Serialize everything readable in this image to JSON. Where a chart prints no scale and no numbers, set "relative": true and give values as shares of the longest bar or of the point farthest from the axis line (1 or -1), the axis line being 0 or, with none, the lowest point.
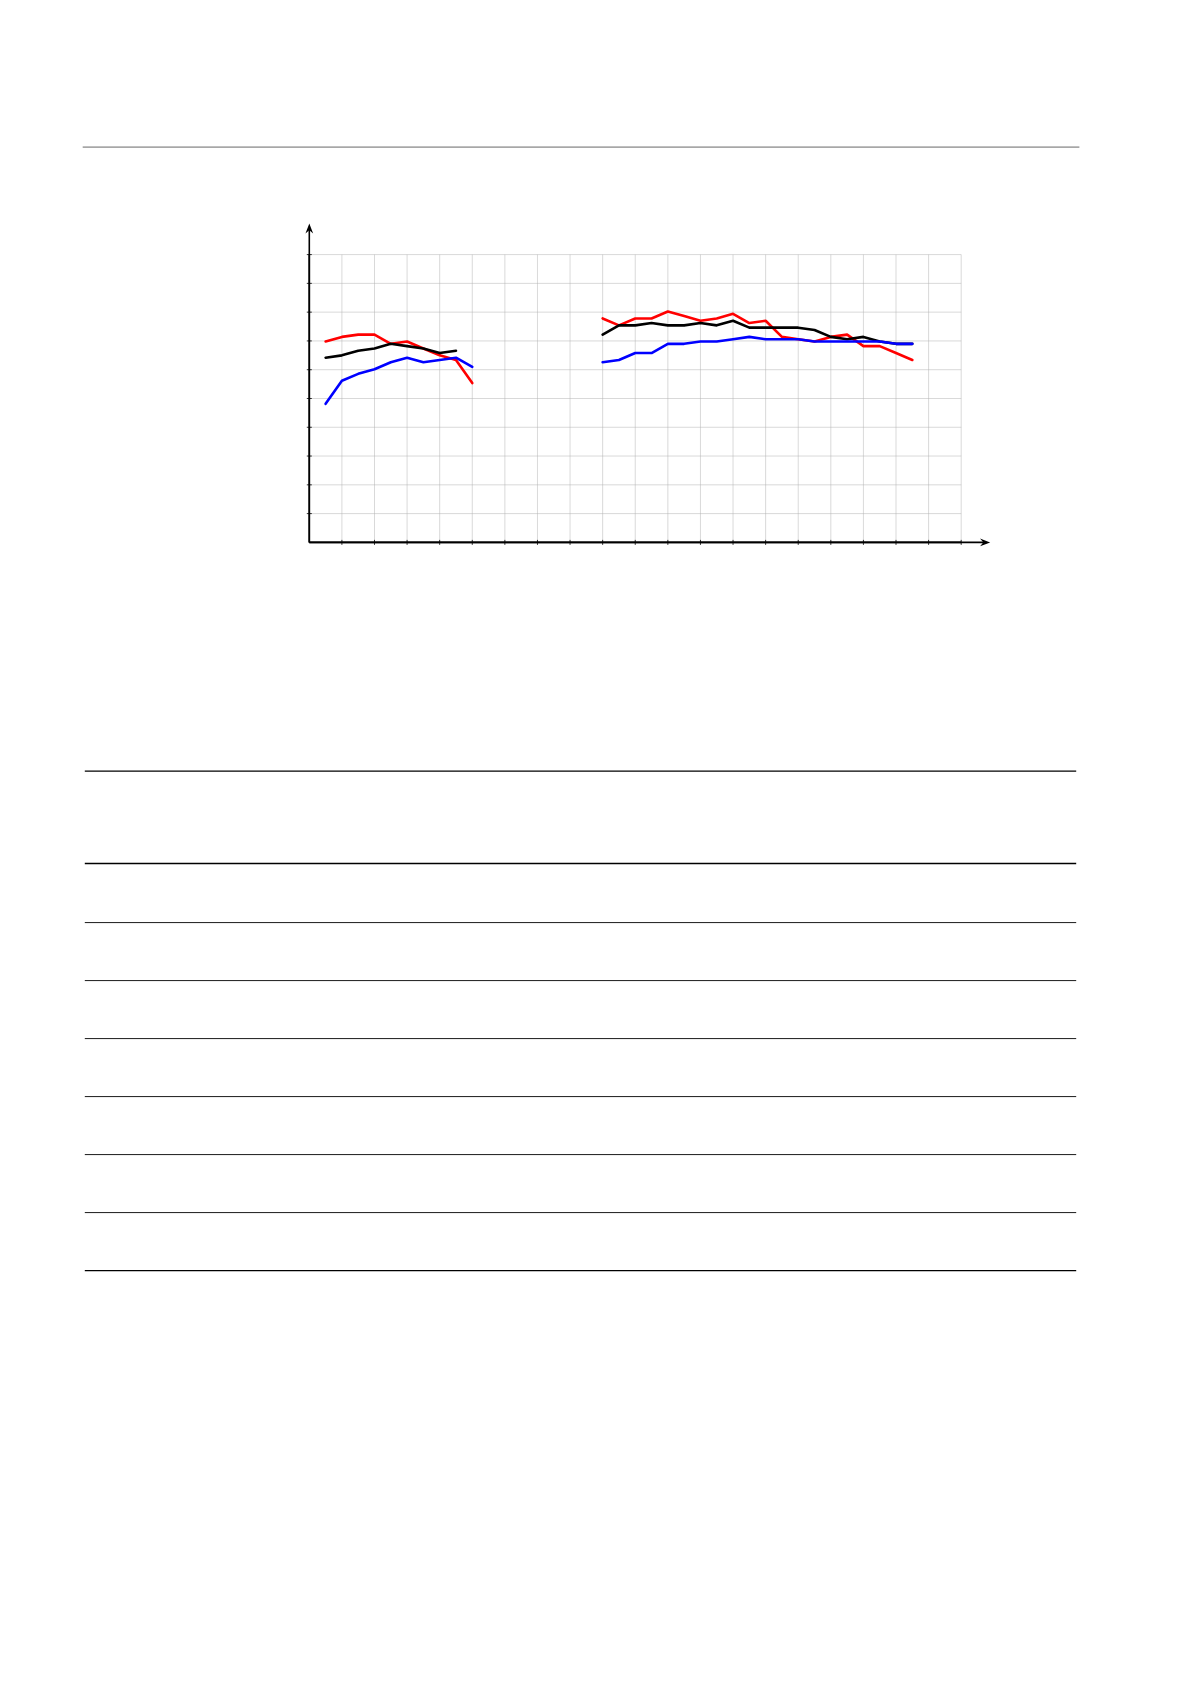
{
  "chart_data": {
    "type": "line",
    "relative": true,
    "grid": true,
    "marker": "none",
    "line_style": "solid",
    "categories": [
      null,
      null,
      null,
      null,
      null,
      null,
      null,
      null,
      null,
      null,
      null,
      null,
      null,
      null,
      null,
      null,
      null,
      null,
      null,
      null,
      null,
      null,
      null,
      null,
      null,
      null,
      null,
      null,
      null,
      null,
      null,
      null,
      null,
      null,
      null,
      null,
      null,
      null,
      null,
      null,
      null
    ],
    "series": [
      {
        "color": "#ff0000",
        "values": [
          null,
          0.87,
          0.89,
          0.9,
          0.9,
          0.86,
          0.87,
          0.84,
          0.81,
          0.79,
          0.69,
          null,
          null,
          null,
          null,
          null,
          null,
          null,
          null,
          null,
          null,
          null,
          null,
          null,
          null,
          null,
          null,
          null,
          null,
          null,
          null,
          null,
          null,
          null,
          null,
          null,
          null,
          null,
          null,
          null,
          null
        ]
      },
      {
        "color": "#000000",
        "values": [
          null,
          0.8,
          0.81,
          0.83,
          0.84,
          0.86,
          0.85,
          0.84,
          0.82,
          0.83,
          null,
          null,
          null,
          null,
          null,
          null,
          null,
          null,
          null,
          null,
          null,
          null,
          null,
          null,
          null,
          null,
          null,
          null,
          null,
          null,
          null,
          null,
          null,
          null,
          null,
          null,
          null,
          null,
          null,
          null,
          null
        ]
      },
      {
        "color": "#0000ff",
        "values": [
          null,
          0.6,
          0.7,
          0.73,
          0.75,
          0.78,
          0.8,
          0.78,
          0.79,
          0.8,
          0.76,
          null,
          null,
          null,
          null,
          null,
          null,
          null,
          null,
          null,
          null,
          null,
          null,
          null,
          null,
          null,
          null,
          null,
          null,
          null,
          null,
          null,
          null,
          null,
          null,
          null,
          null,
          null,
          null,
          null,
          null
        ]
      },
      {
        "color": "#ff0000",
        "values": [
          null,
          null,
          null,
          null,
          null,
          null,
          null,
          null,
          null,
          null,
          null,
          null,
          null,
          null,
          null,
          null,
          null,
          null,
          0.97,
          0.94,
          0.97,
          0.97,
          1,
          0.98,
          0.96,
          0.97,
          0.99,
          0.95,
          0.96,
          0.89,
          0.88,
          0.87,
          0.89,
          0.9,
          0.85,
          0.85,
          0.82,
          0.79,
          null,
          null,
          null
        ]
      },
      {
        "color": "#000000",
        "values": [
          null,
          null,
          null,
          null,
          null,
          null,
          null,
          null,
          null,
          null,
          null,
          null,
          null,
          null,
          null,
          null,
          null,
          null,
          0.9,
          0.94,
          0.94,
          0.95,
          0.94,
          0.94,
          0.95,
          0.94,
          0.96,
          0.93,
          0.93,
          0.93,
          0.93,
          0.92,
          0.89,
          0.88,
          0.89,
          0.87,
          0.86,
          0.86,
          null,
          null,
          null
        ]
      },
      {
        "color": "#0000ff",
        "values": [
          null,
          null,
          null,
          null,
          null,
          null,
          null,
          null,
          null,
          null,
          null,
          null,
          null,
          null,
          null,
          null,
          null,
          null,
          0.78,
          0.79,
          0.82,
          0.82,
          0.86,
          0.86,
          0.87,
          0.87,
          0.88,
          0.89,
          0.88,
          0.88,
          0.88,
          0.87,
          0.87,
          0.87,
          0.87,
          0.87,
          0.86,
          0.86,
          null,
          null,
          null
        ]
      }
    ]
  }
}
